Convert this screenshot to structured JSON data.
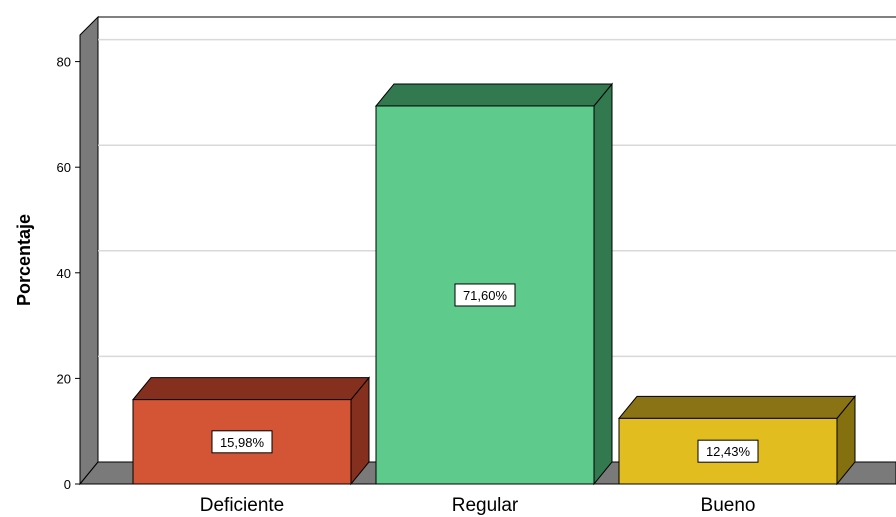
{
  "chart_data": {
    "type": "bar",
    "categories": [
      "Deficiente",
      "Regular",
      "Bueno"
    ],
    "values": [
      15.98,
      71.6,
      12.43
    ],
    "data_labels": [
      "15,98%",
      "71,60%",
      "12,43%"
    ],
    "ylabel": "Porcentaje",
    "xlabel": "",
    "ylim": [
      0,
      80
    ],
    "yticks": [
      "0",
      "20",
      "40",
      "60",
      "80"
    ],
    "grid": true,
    "style": "3d",
    "colors": {
      "front": [
        "#d35535",
        "#5ecb8c",
        "#e2bd1f"
      ],
      "top": [
        "#85301f",
        "#327950",
        "#8a7314"
      ],
      "side": [
        "#85301f",
        "#327950",
        "#85700f"
      ],
      "floor": "#7a7a7a",
      "grid": "#d9d9d9"
    }
  }
}
